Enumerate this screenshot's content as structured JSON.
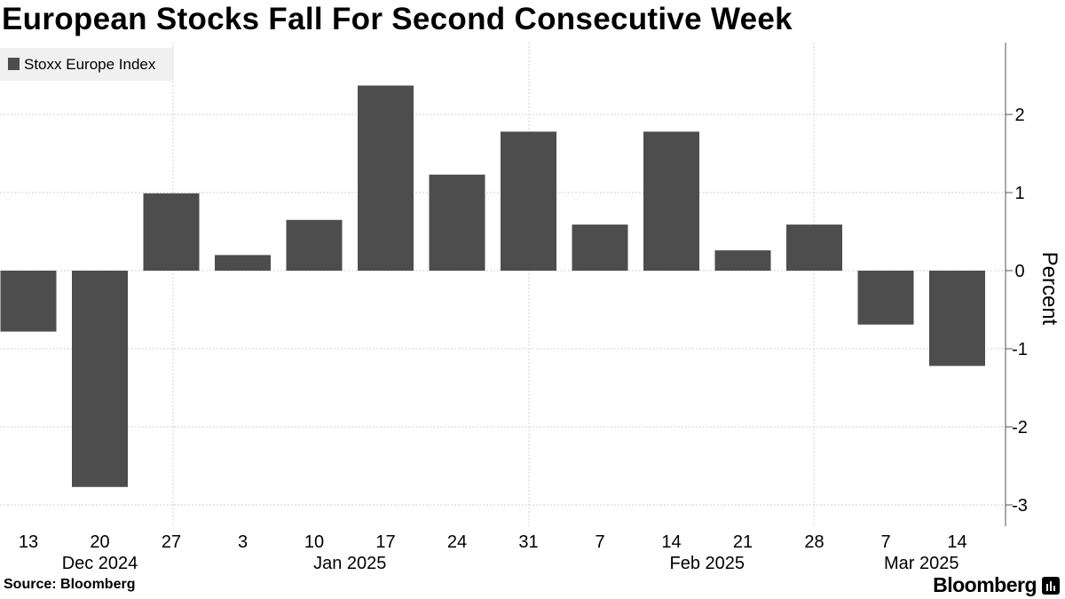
{
  "title": "European Stocks Fall For Second Consecutive Week",
  "source": "Source: Bloomberg",
  "brand": "Bloomberg",
  "brand_icon": "bloomberg-terminal-icon",
  "colors": {
    "bar": "#4d4d4d",
    "grid": "#d0d0d0",
    "axis": "#555555",
    "legend_bg": "#f0f0f0"
  },
  "chart_data": {
    "type": "bar",
    "categories": [
      "13",
      "20",
      "27",
      "3",
      "10",
      "17",
      "24",
      "31",
      "7",
      "14",
      "21",
      "28",
      "7",
      "14"
    ],
    "month_labels": [
      {
        "label": "Dec 2024",
        "index": 1
      },
      {
        "label": "Jan 2025",
        "index": 4.5
      },
      {
        "label": "Feb 2025",
        "index": 9.5
      },
      {
        "label": "Mar 2025",
        "index": 12.5
      }
    ],
    "series": [
      {
        "name": "Stoxx Europe Index",
        "values": [
          -0.78,
          -2.77,
          0.99,
          0.2,
          0.65,
          2.37,
          1.23,
          1.78,
          0.59,
          1.78,
          0.26,
          0.59,
          -0.69,
          -1.22
        ]
      }
    ],
    "ylabel": "Percent",
    "ylim": [
      -3.3,
      2.9
    ],
    "yticks": [
      2,
      1,
      0,
      -1,
      -2,
      -3
    ],
    "legend_position": "top-left",
    "grid": true,
    "y_axis_side": "right"
  }
}
